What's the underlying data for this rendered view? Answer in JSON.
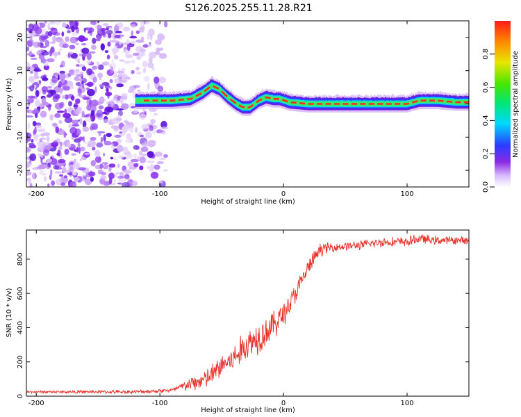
{
  "title": "S126.2025.255.11.28.R21",
  "chart_data": [
    {
      "type": "heatmap",
      "name": "spectrogram",
      "xlabel": "Height of straight line (km)",
      "ylabel": "Frequency (Hz)",
      "xlim": [
        -208,
        150
      ],
      "ylim": [
        -25,
        25
      ],
      "xticks": [
        -200,
        -100,
        0,
        100
      ],
      "yticks": [
        -20,
        -10,
        0,
        10,
        20
      ],
      "noise_region_x": [
        -208,
        -95
      ],
      "signal_start_x": -120,
      "ridge": {
        "x": [
          -120,
          -90,
          -75,
          -65,
          -58,
          -52,
          -45,
          -38,
          -33,
          -27,
          -20,
          -14,
          -8,
          -3,
          5,
          20,
          40,
          60,
          80,
          100,
          110,
          125,
          140,
          150
        ],
        "freq_hz": [
          1.0,
          1.0,
          1.5,
          3.5,
          5.5,
          4.5,
          2.0,
          0.0,
          -1.0,
          -1.0,
          1.0,
          2.0,
          1.5,
          1.5,
          0.5,
          0.0,
          0.0,
          0.0,
          0.0,
          0.0,
          1.0,
          1.0,
          0.5,
          0.5
        ]
      },
      "colorbar": {
        "label": "Normalized spectral amplitude",
        "range": [
          0,
          1
        ],
        "ticks": [
          0.0,
          0.2,
          0.4,
          0.6,
          0.8
        ],
        "tick_labels": [
          "0.0",
          "0.2",
          "0.4",
          "0.6",
          "0.8"
        ]
      }
    },
    {
      "type": "line",
      "name": "snr",
      "xlabel": "Height of straight line (km)",
      "ylabel": "SNR (10 * v/v)",
      "xlim": [
        -208,
        150
      ],
      "ylim": [
        0,
        970
      ],
      "xticks": [
        -200,
        -100,
        0,
        100
      ],
      "yticks": [
        0,
        200,
        400,
        600,
        800
      ],
      "color": "#e8312a",
      "trend": {
        "x": [
          -208,
          -120,
          -90,
          -80,
          -70,
          -60,
          -50,
          -40,
          -30,
          -20,
          -10,
          0,
          10,
          20,
          30,
          40,
          60,
          80,
          100,
          110,
          120,
          150
        ],
        "y": [
          25,
          25,
          35,
          60,
          80,
          110,
          180,
          220,
          300,
          350,
          400,
          480,
          600,
          750,
          860,
          870,
          880,
          900,
          900,
          920,
          910,
          910
        ]
      },
      "noise_amplitude": [
        {
          "x": -208,
          "amp": 8
        },
        {
          "x": -90,
          "amp": 15
        },
        {
          "x": -70,
          "amp": 60
        },
        {
          "x": -20,
          "amp": 120
        },
        {
          "x": 20,
          "amp": 60
        },
        {
          "x": 40,
          "amp": 30
        },
        {
          "x": 100,
          "amp": 35
        },
        {
          "x": 150,
          "amp": 25
        }
      ]
    }
  ]
}
